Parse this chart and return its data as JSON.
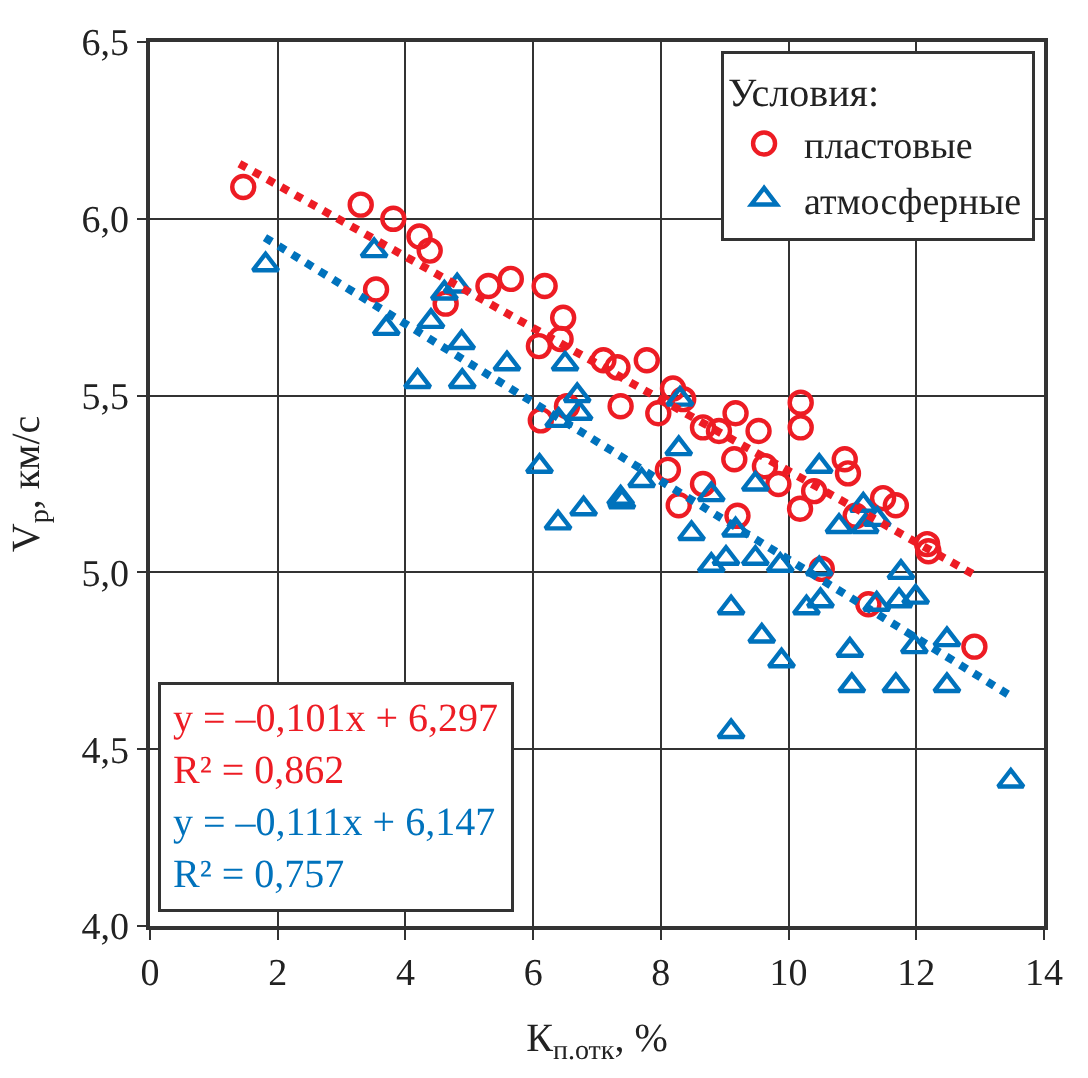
{
  "chart_data": {
    "type": "scatter",
    "xlabel": "К$_{п.отк}$, %",
    "ylabel": "V$_{p}$, км/с",
    "legend_title": "Условия:",
    "xlim": [
      0,
      14
    ],
    "xticks": [
      0,
      2,
      4,
      6,
      8,
      10,
      12,
      14
    ],
    "ylim": [
      4.0,
      6.5
    ],
    "yticks": [
      {
        "value": 4.0,
        "label": "4,0"
      },
      {
        "value": 4.5,
        "label": "4,5"
      },
      {
        "value": 5.0,
        "label": "5,0"
      },
      {
        "value": 5.5,
        "label": "5,5"
      },
      {
        "value": 6.0,
        "label": "6,0"
      },
      {
        "value": 6.5,
        "label": "6,5"
      }
    ],
    "grid": true,
    "legend": "top right",
    "annotations": [
      "y = –0,101x + 6,297",
      "R² = 0,862",
      "y = –0,111x + 6,147",
      "R² = 0,757"
    ],
    "series": [
      {
        "name": "пластовые",
        "color": "#ed1c24",
        "marker": "circle",
        "x": [
          1.46,
          3.3,
          3.81,
          4.22,
          4.38,
          3.54,
          4.52,
          4.63,
          5.3,
          5.65,
          6.18,
          6.47,
          6.09,
          6.43,
          7.1,
          7.32,
          7.37,
          6.12,
          6.53,
          7.78,
          8.19,
          8.35,
          7.96,
          8.66,
          8.91,
          9.17,
          9.53,
          10.19,
          10.19,
          9.15,
          8.11,
          8.66,
          9.63,
          9.84,
          10.4,
          10.88,
          10.93,
          8.28,
          9.2,
          10.18,
          11.05,
          11.48,
          11.68,
          12.17,
          12.19,
          10.52,
          11.25,
          12.91
        ],
        "values": [
          6.09,
          6.04,
          6.0,
          5.95,
          5.91,
          5.8,
          null,
          5.76,
          5.81,
          5.83,
          5.81,
          5.72,
          5.64,
          5.66,
          5.6,
          5.58,
          5.47,
          5.43,
          5.47,
          5.6,
          5.52,
          5.49,
          5.45,
          5.41,
          5.4,
          5.45,
          5.4,
          5.48,
          5.41,
          5.32,
          5.29,
          5.25,
          5.3,
          5.25,
          5.23,
          5.32,
          5.28,
          5.19,
          5.16,
          5.18,
          5.16,
          5.21,
          5.19,
          5.08,
          5.06,
          5.01,
          4.91,
          4.79
        ]
      },
      {
        "name": "атмосферные",
        "color": "#0072bc",
        "marker": "triangle",
        "x": [
          1.81,
          3.51,
          4.81,
          4.61,
          3.7,
          4.4,
          4.88,
          4.19,
          4.89,
          5.59,
          6.5,
          6.69,
          6.72,
          6.4,
          6.1,
          6.39,
          6.79,
          7.37,
          8.3,
          7.39,
          7.63,
          7.7,
          8.28,
          8.79,
          9.48,
          10.48,
          8.48,
          9.17,
          8.79,
          9.02,
          9.48,
          9.87,
          10.48,
          9.1,
          10.28,
          10.5,
          9.58,
          9.89,
          11.17,
          10.79,
          11.2,
          11.39,
          11.76,
          11.73,
          11.99,
          11.38,
          10.96,
          11.97,
          12.48,
          10.99,
          11.68,
          12.48,
          9.1,
          13.48
        ],
        "values": [
          5.87,
          5.91,
          5.81,
          5.79,
          5.69,
          5.71,
          5.65,
          5.54,
          5.54,
          5.59,
          5.59,
          5.5,
          5.45,
          5.43,
          5.3,
          5.14,
          5.18,
          5.21,
          5.49,
          5.2,
          null,
          5.26,
          5.35,
          5.22,
          5.25,
          5.3,
          5.11,
          5.12,
          5.02,
          5.04,
          5.04,
          5.02,
          5.01,
          4.9,
          4.9,
          4.92,
          4.82,
          4.75,
          5.19,
          5.13,
          5.13,
          5.15,
          5.0,
          4.92,
          4.93,
          4.91,
          4.78,
          4.79,
          4.81,
          4.68,
          4.68,
          4.68,
          4.55,
          4.41
        ]
      },
      {
        "type": "line",
        "color": "#ed1c24",
        "line_style": "dotted",
        "x": [
          1.4,
          12.9
        ],
        "values": [
          6.156,
          4.994
        ]
      },
      {
        "type": "line",
        "color": "#0072bc",
        "line_style": "dotted",
        "x": [
          1.8,
          13.5
        ],
        "values": [
          5.947,
          4.648
        ]
      }
    ]
  }
}
